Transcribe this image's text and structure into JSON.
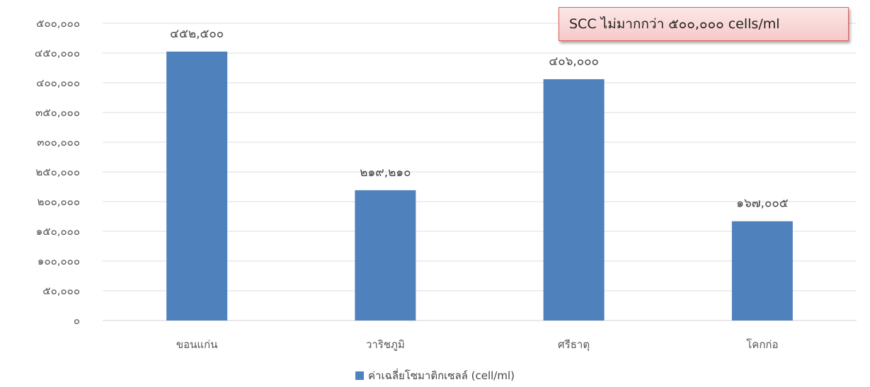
{
  "chart_data": {
    "type": "bar",
    "categories": [
      "ขอนแก่น",
      "วาริชภูมิ",
      "ศรีธาตุ",
      "โคกก่อ"
    ],
    "series": [
      {
        "name": "ค่าเฉลี่ยโซมาติกเซลล์ (cell/ml)",
        "values": [
          452500,
          219210,
          406000,
          167005
        ],
        "color": "#4f81bd"
      }
    ],
    "data_labels": [
      "๔๕๒,๕๐๐",
      "๒๑๙,๒๑๐",
      "๔๐๖,๐๐๐",
      "๑๖๗,๐๐๕"
    ],
    "y_ticks": [
      0,
      50000,
      100000,
      150000,
      200000,
      250000,
      300000,
      350000,
      400000,
      450000,
      500000
    ],
    "y_tick_labels": [
      "๐",
      "๕๐,๐๐๐",
      "๑๐๐,๐๐๐",
      "๑๕๐,๐๐๐",
      "๒๐๐,๐๐๐",
      "๒๕๐,๐๐๐",
      "๓๐๐,๐๐๐",
      "๓๕๐,๐๐๐",
      "๔๐๐,๐๐๐",
      "๔๕๐,๐๐๐",
      "๕๐๐,๐๐๐"
    ],
    "ylim": [
      0,
      500000
    ],
    "grid": true,
    "legend_position": "bottom",
    "annotation": "SCC ไม่มากกว่า  ๕๐๐,๐๐๐ cells/ml"
  }
}
